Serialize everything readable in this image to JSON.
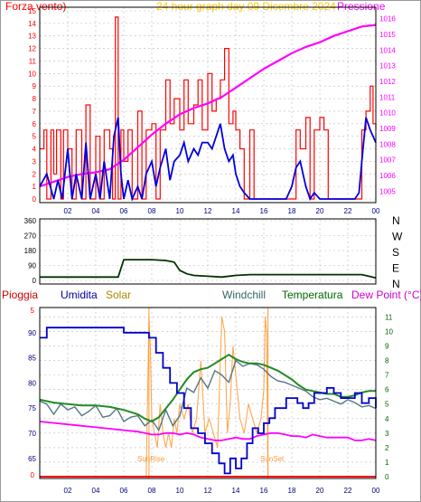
{
  "header": {
    "left_label": "Forza vento)",
    "center_label": "24 hour graph day   09 Dicembre 2024",
    "right_label": "Pressione"
  },
  "legend": {
    "pioggia": "Pioggia",
    "umidita": "Umidita",
    "solar": "Solar",
    "windchill": "Windchill",
    "temperatura": "Temperatura",
    "dewpoint": "Dew Point (°C)"
  },
  "annotations": {
    "sunrise": "SunRise",
    "sunset": "SunSet"
  },
  "colors": {
    "wind_gust": "#ff0000",
    "wind_avg": "#0000dd",
    "pressure": "#ff00ff",
    "direction": "#003300",
    "humidity": "#0000cc",
    "solar": "#ff9933",
    "windchill": "#557788",
    "temperature": "#228b22",
    "dewpoint": "#ff00ff",
    "rain": "#ff0000"
  },
  "chart_data": [
    {
      "type": "line",
      "name": "wind-pressure",
      "x_ticks": [
        "02",
        "04",
        "06",
        "08",
        "10",
        "12",
        "14",
        "16",
        "18",
        "20",
        "22",
        "00"
      ],
      "y_left_ticks": [
        "0",
        "1",
        "2",
        "3",
        "4",
        "5",
        "6",
        "7",
        "8",
        "9",
        "10",
        "11",
        "12",
        "13",
        "14",
        "15"
      ],
      "y_right_ticks": [
        "1005",
        "1006",
        "1007",
        "1008",
        "1009",
        "1010",
        "1011",
        "1012",
        "1013",
        "1014",
        "1015",
        "1016"
      ],
      "ylim_left": [
        0,
        15
      ],
      "ylim_right": [
        1004.5,
        1016.5
      ],
      "gust": {
        "x": [
          0,
          0.3,
          0.5,
          0.8,
          1.0,
          1.2,
          1.5,
          1.7,
          2.0,
          2.3,
          2.6,
          3.0,
          3.3,
          3.6,
          4.0,
          4.3,
          4.6,
          5.0,
          5.2,
          5.4,
          5.6,
          5.8,
          6.0,
          6.3,
          6.6,
          7.0,
          7.3,
          7.6,
          8.0,
          8.3,
          8.6,
          9.0,
          9.3,
          9.6,
          10.0,
          10.3,
          10.6,
          11.0,
          11.3,
          11.6,
          12.0,
          12.3,
          12.6,
          12.9,
          13.2,
          13.5,
          13.8,
          14.0,
          14.3,
          14.6,
          15.0,
          15.3,
          15.6,
          16.0,
          16.5,
          17.0,
          17.5,
          18.0,
          18.3,
          18.6,
          19.0,
          19.3,
          19.6,
          20.0,
          20.3,
          20.6,
          21.0,
          21.5,
          22.0,
          22.3,
          22.6,
          23.0,
          23.3,
          23.6,
          23.8,
          24.0
        ],
        "values": [
          4,
          5.5,
          0,
          5.5,
          2,
          5.5,
          0,
          5.5,
          4,
          0,
          5.5,
          0,
          7.5,
          0,
          5,
          0,
          5.5,
          4,
          0,
          14.5,
          0,
          5.5,
          3,
          5.5,
          0,
          7,
          0,
          5.5,
          6,
          0,
          5.5,
          9.5,
          6,
          8,
          5.5,
          9.5,
          6,
          7.5,
          9.5,
          5.5,
          10,
          7,
          8,
          9.5,
          12,
          6,
          7,
          5.5,
          4,
          0,
          5.5,
          0,
          0,
          0,
          0,
          0,
          0,
          0,
          5.5,
          4,
          6.5,
          0,
          5.5,
          6.5,
          5.5,
          0,
          0,
          0,
          0,
          0,
          0,
          5.5,
          7,
          9,
          6,
          5.5
        ]
      },
      "average": {
        "x": [
          0,
          0.5,
          1.0,
          1.3,
          1.6,
          2.0,
          2.3,
          2.6,
          3.0,
          3.3,
          3.6,
          4.0,
          4.3,
          4.6,
          5.0,
          5.3,
          5.6,
          5.8,
          6.0,
          6.3,
          6.6,
          7.0,
          7.3,
          7.6,
          8.0,
          8.3,
          8.6,
          9.0,
          9.3,
          9.6,
          10.0,
          10.3,
          10.6,
          11.0,
          11.3,
          11.6,
          12.0,
          12.3,
          12.6,
          12.9,
          13.2,
          13.5,
          13.8,
          14.0,
          14.3,
          14.6,
          15.0,
          16.0,
          17.0,
          17.6,
          18.0,
          18.3,
          18.6,
          19.0,
          19.3,
          19.6,
          20.0,
          21.0,
          22.0,
          22.5,
          22.8,
          23.0,
          23.3,
          23.6,
          24.0
        ],
        "values": [
          1,
          2,
          0,
          1.5,
          0,
          4,
          0,
          2,
          0,
          4.5,
          0,
          2,
          0,
          3,
          0,
          5,
          6.5,
          2,
          0,
          1.5,
          0,
          1,
          0,
          2,
          3,
          1,
          2.5,
          4,
          1.5,
          3,
          3.5,
          4.5,
          3,
          4,
          3.5,
          4.5,
          4.5,
          4,
          5,
          6,
          4,
          3,
          3.5,
          2,
          1,
          0.5,
          0,
          0,
          0,
          0,
          1,
          2.5,
          3,
          1,
          0,
          0.5,
          0,
          0,
          0,
          0,
          0.5,
          3,
          6.5,
          5.5,
          4.5
        ]
      },
      "pressure": {
        "x": [
          0,
          1,
          2,
          3,
          4,
          5,
          6,
          7,
          8,
          9,
          10,
          11,
          12,
          13,
          14,
          15,
          16,
          17,
          18,
          19,
          20,
          21,
          22,
          23,
          24
        ],
        "values": [
          1005.3,
          1005.6,
          1005.9,
          1006.1,
          1006.2,
          1006.4,
          1007.0,
          1007.8,
          1008.6,
          1009.3,
          1009.9,
          1010.3,
          1010.6,
          1011.0,
          1011.6,
          1012.2,
          1012.8,
          1013.3,
          1013.8,
          1014.2,
          1014.5,
          1014.9,
          1015.2,
          1015.5,
          1015.6
        ]
      }
    },
    {
      "type": "line",
      "name": "wind-direction",
      "y_left_ticks": [
        "0",
        "90",
        "180",
        "270",
        "360"
      ],
      "y_right_ticks": [
        "N",
        "E",
        "S",
        "W",
        "N"
      ],
      "ylim": [
        0,
        360
      ],
      "x": [
        0,
        1,
        2,
        3,
        4,
        5,
        5.6,
        6,
        7,
        7.6,
        8,
        9,
        9.6,
        10,
        10.5,
        11,
        12,
        13,
        14,
        15,
        16,
        17,
        18,
        19,
        20,
        21,
        22,
        23,
        23.5,
        24
      ],
      "values": [
        20,
        20,
        20,
        20,
        20,
        20,
        20,
        125,
        125,
        125,
        125,
        120,
        110,
        60,
        40,
        30,
        25,
        20,
        30,
        35,
        35,
        35,
        35,
        35,
        35,
        35,
        35,
        35,
        25,
        15
      ]
    },
    {
      "type": "line",
      "name": "weather",
      "y_left_ticks": [
        "65",
        "70",
        "75",
        "80",
        "85",
        "90"
      ],
      "y_right_ticks": [
        "0",
        "1",
        "2",
        "3",
        "4",
        "5",
        "6",
        "7",
        "8",
        "9",
        "10",
        "11"
      ],
      "ylim_left": [
        61,
        95
      ],
      "ylim_right": [
        0,
        11.4
      ],
      "humidity": {
        "x": [
          0,
          0.5,
          1,
          2,
          3,
          4,
          5,
          6,
          7,
          7.8,
          8.3,
          8.8,
          9.3,
          9.8,
          10.3,
          10.8,
          11.3,
          11.8,
          12.3,
          12.8,
          13.2,
          13.6,
          14.0,
          14.4,
          14.8,
          15.2,
          15.6,
          16.0,
          16.4,
          16.8,
          17.2,
          17.6,
          18.0,
          18.4,
          18.8,
          19.2,
          19.6,
          20.0,
          20.5,
          21.0,
          21.5,
          22.0,
          22.5,
          23.0,
          23.5,
          24.0
        ],
        "values": [
          89,
          91,
          91,
          91,
          91,
          91,
          91,
          90,
          90,
          89,
          86,
          83,
          80,
          78,
          75,
          71,
          70,
          68,
          66,
          64,
          62,
          65,
          63,
          65,
          68,
          71,
          70,
          72,
          73,
          75,
          75,
          77,
          77,
          76,
          75,
          76,
          78,
          78,
          79,
          78,
          77,
          77,
          78,
          76,
          77,
          75
        ]
      },
      "windchill": {
        "x": [
          0,
          0.5,
          1,
          1.5,
          2,
          2.5,
          3,
          3.5,
          4,
          4.5,
          5,
          5.5,
          6,
          6.5,
          7,
          7.5,
          8,
          8.5,
          9,
          9.5,
          10,
          10.5,
          11,
          11.5,
          12,
          12.5,
          13,
          13.5,
          14,
          14.5,
          15,
          15.5,
          16,
          16.5,
          17,
          17.5,
          18,
          18.5,
          19,
          19.5,
          20,
          20.5,
          21,
          21.5,
          22,
          22.5,
          23,
          23.5,
          24
        ],
        "values": [
          5.2,
          5.0,
          4.3,
          5.0,
          4.6,
          4.8,
          4.2,
          4.5,
          4.9,
          4.1,
          4.2,
          4.7,
          3.8,
          4.1,
          4.2,
          3.5,
          3.9,
          3.2,
          4.6,
          3.5,
          4.2,
          6.1,
          5.8,
          6.8,
          6.1,
          7.3,
          7.0,
          6.5,
          8.0,
          7.6,
          7.8,
          7.7,
          7.4,
          6.9,
          6.6,
          6.5,
          6.3,
          6.1,
          5.9,
          5.5,
          5.3,
          5.4,
          5.2,
          5.0,
          5.3,
          5.1,
          4.8,
          4.9,
          4.7
        ]
      },
      "solar": {
        "x": [
          0,
          7.6,
          7.8,
          7.9,
          8.0,
          8.2,
          8.4,
          8.6,
          8.8,
          9.0,
          9.2,
          9.4,
          9.6,
          9.8,
          10.0,
          10.3,
          10.6,
          10.9,
          11.2,
          11.5,
          11.8,
          12.1,
          12.4,
          12.7,
          13.0,
          13.2,
          13.4,
          13.6,
          13.8,
          14.0,
          14.3,
          14.6,
          14.9,
          15.2,
          15.5,
          15.8,
          16.0,
          16.1,
          16.2,
          16.3,
          16.5,
          24
        ],
        "values": [
          0,
          0,
          11,
          9,
          4,
          3,
          2,
          5,
          3,
          2,
          3,
          2,
          4,
          3,
          5,
          4,
          5,
          3,
          4,
          8,
          3,
          4,
          3,
          2,
          11,
          10,
          3,
          5,
          9,
          7,
          4,
          3,
          5,
          4,
          3,
          4,
          6,
          11,
          10,
          0,
          0,
          0
        ]
      },
      "temperature": {
        "x": [
          0,
          1,
          2,
          3,
          4,
          5,
          6,
          7,
          7.5,
          8,
          8.5,
          9,
          9.5,
          10,
          10.5,
          11,
          11.5,
          12,
          12.5,
          13,
          13.5,
          14,
          14.5,
          15,
          15.5,
          16,
          16.5,
          17,
          17.5,
          18,
          18.5,
          19,
          19.5,
          20,
          20.5,
          21,
          21.5,
          22,
          22.5,
          23,
          23.5,
          24
        ],
        "values": [
          5.3,
          5.1,
          5.0,
          4.9,
          4.9,
          4.8,
          4.6,
          4.3,
          4.0,
          3.8,
          4.1,
          4.7,
          5.3,
          6.0,
          6.7,
          7.2,
          7.4,
          7.5,
          7.8,
          8.1,
          8.4,
          8.1,
          7.9,
          7.8,
          7.8,
          7.7,
          7.5,
          7.3,
          7.0,
          6.7,
          6.3,
          6.0,
          5.9,
          5.8,
          5.7,
          5.7,
          5.5,
          5.5,
          5.6,
          5.8,
          5.9,
          5.9
        ]
      },
      "dewpoint": {
        "x": [
          0,
          1,
          2,
          3,
          4,
          5,
          6,
          7,
          7.5,
          8,
          8.5,
          9,
          9.5,
          10,
          10.5,
          11,
          11.5,
          12,
          12.5,
          13,
          13.5,
          14,
          14.5,
          15,
          15.5,
          16,
          16.5,
          17,
          17.5,
          18,
          18.5,
          19,
          19.5,
          20,
          20.5,
          21,
          21.5,
          22,
          22.5,
          23,
          23.5,
          24
        ],
        "values": [
          3.8,
          3.7,
          3.6,
          3.5,
          3.4,
          3.3,
          3.2,
          3.1,
          3.0,
          2.9,
          2.9,
          3.0,
          3.0,
          2.9,
          3.0,
          2.9,
          2.7,
          2.6,
          2.5,
          2.5,
          2.6,
          2.7,
          2.6,
          2.6,
          2.8,
          2.9,
          3.0,
          3.0,
          2.9,
          2.8,
          2.8,
          2.7,
          2.9,
          2.8,
          2.7,
          2.7,
          2.7,
          2.7,
          2.5,
          2.5,
          2.6,
          2.5
        ]
      },
      "rain": {
        "x": [
          0,
          24
        ],
        "values": [
          0,
          0
        ]
      },
      "sunrise_x": 7.8,
      "sunset_x": 16.3
    }
  ]
}
